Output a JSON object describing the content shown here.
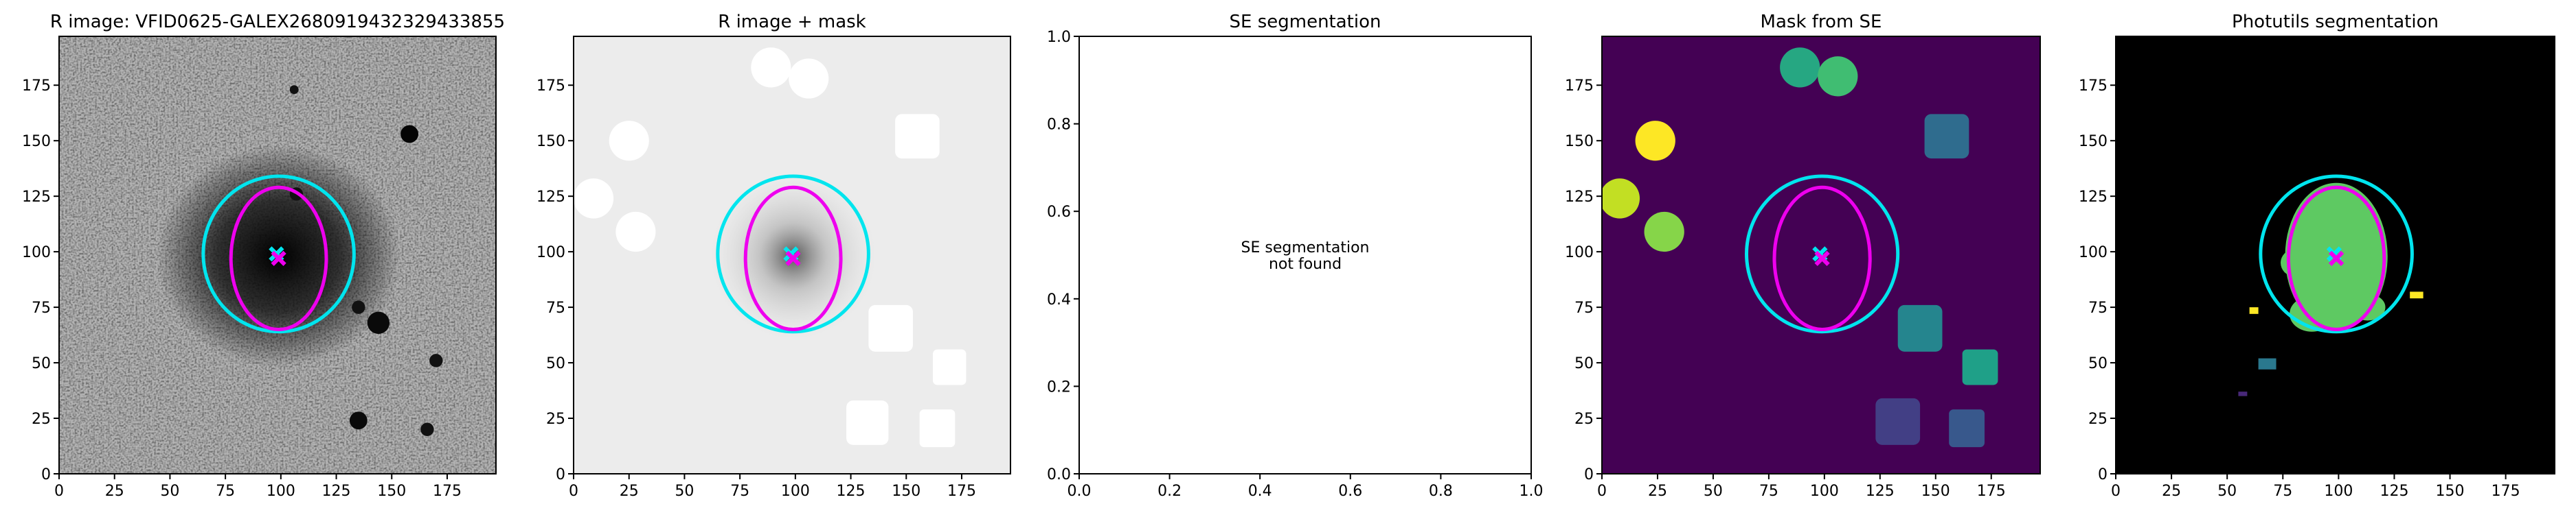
{
  "chart_data": [
    {
      "type": "image",
      "title": "R image: VFID0625-GALEX2680919432329433855",
      "xlim": [
        0,
        197
      ],
      "ylim": [
        0,
        197
      ],
      "xticks": [
        0,
        25,
        50,
        75,
        100,
        125,
        150,
        175
      ],
      "yticks": [
        0,
        25,
        50,
        75,
        100,
        125,
        150,
        175
      ],
      "ellipses": [
        {
          "color": "#00e5ee",
          "x": 99,
          "y": 99,
          "width": 68,
          "height": 70
        },
        {
          "color": "#ee00ee",
          "x": 99,
          "y": 97,
          "width": 43,
          "height": 64
        }
      ],
      "markers": [
        {
          "color": "#00e5ee",
          "x": 98,
          "y": 99
        },
        {
          "color": "#ee00ee",
          "x": 99,
          "y": 97
        }
      ]
    },
    {
      "type": "image",
      "title": "R image + mask",
      "xlim": [
        0,
        197
      ],
      "ylim": [
        0,
        197
      ],
      "xticks": [
        0,
        25,
        50,
        75,
        100,
        125,
        150,
        175
      ],
      "yticks": [
        0,
        25,
        50,
        75,
        100,
        125,
        150,
        175
      ],
      "ellipses": [
        {
          "color": "#00e5ee",
          "x": 99,
          "y": 99,
          "width": 68,
          "height": 70
        },
        {
          "color": "#ee00ee",
          "x": 99,
          "y": 97,
          "width": 43,
          "height": 64
        }
      ],
      "markers": [
        {
          "color": "#00e5ee",
          "x": 98,
          "y": 99
        },
        {
          "color": "#ee00ee",
          "x": 99,
          "y": 97
        }
      ]
    },
    {
      "type": "text",
      "title": "SE segmentation",
      "xlim": [
        0,
        1
      ],
      "ylim": [
        0,
        1
      ],
      "xticks": [
        {
          "value": 0,
          "label": "0.0"
        },
        {
          "value": 0.2,
          "label": "0.2"
        },
        {
          "value": 0.4,
          "label": "0.4"
        },
        {
          "value": 0.6,
          "label": "0.6"
        },
        {
          "value": 0.8,
          "label": "0.8"
        },
        {
          "value": 1,
          "label": "1.0"
        }
      ],
      "yticks": [
        {
          "value": 0,
          "label": "0.0"
        },
        {
          "value": 0.2,
          "label": "0.2"
        },
        {
          "value": 0.4,
          "label": "0.4"
        },
        {
          "value": 0.6,
          "label": "0.6"
        },
        {
          "value": 0.8,
          "label": "0.8"
        },
        {
          "value": 1,
          "label": "1.0"
        }
      ],
      "annotation": [
        "SE segmentation",
        "not found"
      ]
    },
    {
      "type": "image",
      "title": "Mask from SE",
      "xlim": [
        0,
        197
      ],
      "ylim": [
        0,
        197
      ],
      "xticks": [
        0,
        25,
        50,
        75,
        100,
        125,
        150,
        175
      ],
      "yticks": [
        0,
        25,
        50,
        75,
        100,
        125,
        150,
        175
      ],
      "ellipses": [
        {
          "color": "#00e5ee",
          "x": 99,
          "y": 99,
          "width": 68,
          "height": 70
        },
        {
          "color": "#ee00ee",
          "x": 99,
          "y": 97,
          "width": 43,
          "height": 64
        }
      ],
      "markers": [
        {
          "color": "#00e5ee",
          "x": 98,
          "y": 99
        },
        {
          "color": "#ee00ee",
          "x": 99,
          "y": 97
        }
      ]
    },
    {
      "type": "image",
      "title": "Photutils segmentation",
      "xlim": [
        0,
        197
      ],
      "ylim": [
        0,
        197
      ],
      "xticks": [
        0,
        25,
        50,
        75,
        100,
        125,
        150,
        175
      ],
      "yticks": [
        0,
        25,
        50,
        75,
        100,
        125,
        150,
        175
      ],
      "ellipses": [
        {
          "color": "#00e5ee",
          "x": 99,
          "y": 99,
          "width": 68,
          "height": 70
        },
        {
          "color": "#ee00ee",
          "x": 99,
          "y": 97,
          "width": 43,
          "height": 64
        }
      ],
      "markers": [
        {
          "color": "#00e5ee",
          "x": 98,
          "y": 99
        },
        {
          "color": "#ee00ee",
          "x": 99,
          "y": 97
        }
      ]
    }
  ]
}
